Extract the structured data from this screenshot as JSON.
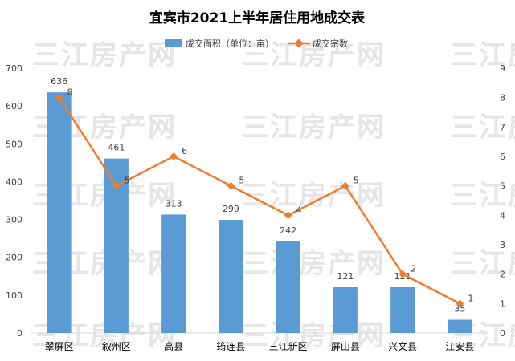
{
  "watermark": "三江房产网",
  "chart_data": {
    "type": "bar+line",
    "title": "宜宾市2021上半年居住用地成交表",
    "categories": [
      "翠屏区",
      "叙州区",
      "高县",
      "筠连县",
      "三江新区",
      "屏山县",
      "兴文县",
      "江安县"
    ],
    "series": [
      {
        "name": "成交面积（单位：亩）",
        "type": "bar",
        "axis": "left",
        "color": "#5b9bd5",
        "values": [
          636,
          461,
          313,
          299,
          242,
          121,
          121,
          35
        ]
      },
      {
        "name": "成交宗数",
        "type": "line",
        "axis": "right",
        "color": "#ed7d31",
        "values": [
          8,
          5,
          6,
          5,
          4,
          5,
          2,
          1
        ]
      }
    ],
    "y_left": {
      "min": 0,
      "max": 700,
      "ticks": [
        0,
        100,
        200,
        300,
        400,
        500,
        600,
        700
      ]
    },
    "y_right": {
      "min": 0,
      "max": 9,
      "ticks": [
        0,
        1,
        2,
        3,
        4,
        5,
        6,
        7,
        8,
        9
      ]
    },
    "grid": false,
    "legend_position": "top-center"
  }
}
